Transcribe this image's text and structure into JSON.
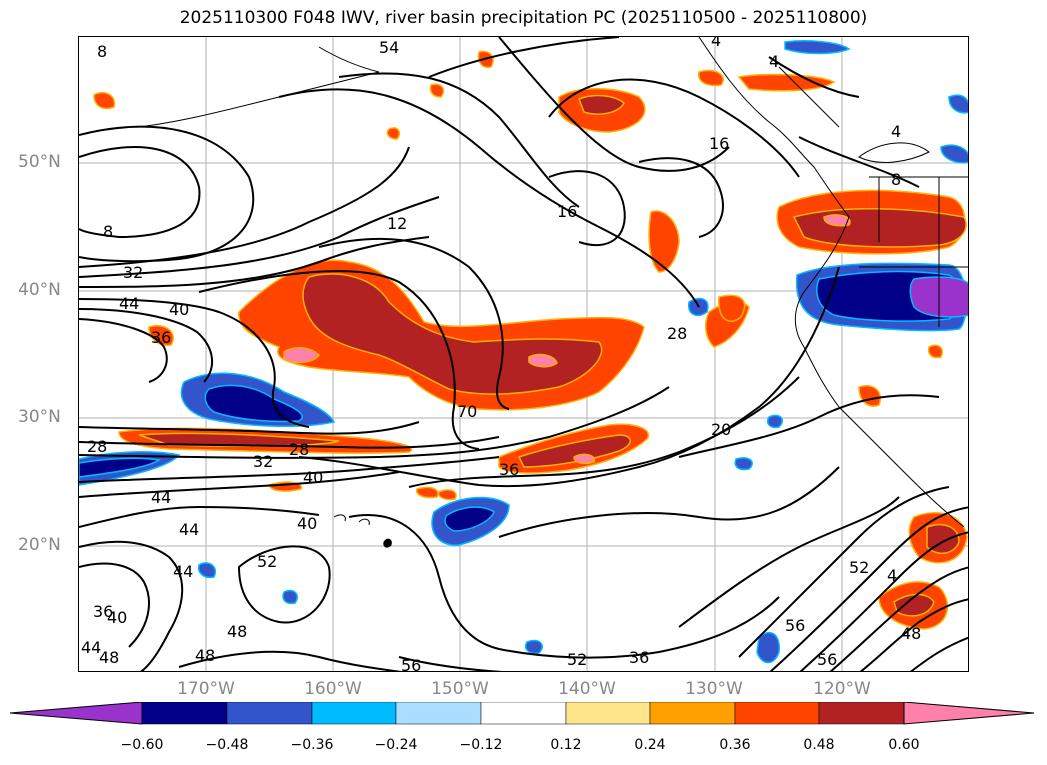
{
  "title": "2025110300 F048 IWV, river basin precipitation PC (2025110500 - 2025110800)",
  "lat_labels": [
    "50°N",
    "40°N",
    "30°N",
    "20°N"
  ],
  "lon_labels": [
    "170°W",
    "160°W",
    "150°W",
    "140°W",
    "130°W",
    "120°W"
  ],
  "colorbar": {
    "ticks": [
      "−0.60",
      "−0.48",
      "−0.36",
      "−0.24",
      "−0.12",
      "0.12",
      "0.24",
      "0.36",
      "0.48",
      "0.60"
    ],
    "colors": [
      "#9933cc",
      "#000088",
      "#3355cc",
      "#00bbff",
      "#aaddff",
      "#ffffff",
      "#ffe58a",
      "#ffa000",
      "#ff4400",
      "#b22222",
      "#ff80aa"
    ]
  },
  "contour_labels": [
    "8",
    "8",
    "12",
    "16",
    "16",
    "4",
    "4",
    "4",
    "8",
    "32",
    "44",
    "40",
    "36",
    "28",
    "28",
    "32",
    "40",
    "44",
    "44",
    "44",
    "40",
    "36",
    "40",
    "44",
    "48",
    "48",
    "52",
    "48",
    "56",
    "52",
    "36",
    "70",
    "28",
    "20",
    "36",
    "56",
    "56",
    "52",
    "4",
    "48",
    "54"
  ]
}
